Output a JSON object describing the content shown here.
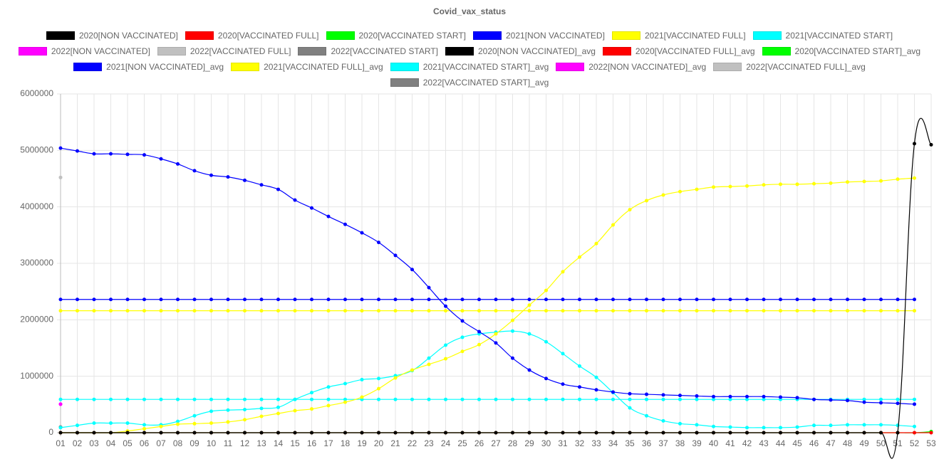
{
  "chart_data": {
    "type": "line",
    "title": "Covid_vax_status",
    "categories": [
      "01",
      "02",
      "03",
      "04",
      "05",
      "06",
      "07",
      "08",
      "09",
      "10",
      "11",
      "12",
      "13",
      "14",
      "15",
      "16",
      "17",
      "18",
      "19",
      "20",
      "21",
      "22",
      "23",
      "24",
      "25",
      "26",
      "27",
      "28",
      "29",
      "30",
      "31",
      "32",
      "33",
      "34",
      "35",
      "36",
      "37",
      "38",
      "39",
      "40",
      "41",
      "42",
      "43",
      "44",
      "45",
      "46",
      "47",
      "48",
      "49",
      "50",
      "51",
      "52",
      "53"
    ],
    "ylim": [
      0,
      6000000
    ],
    "yticks": [
      0,
      1000000,
      2000000,
      3000000,
      4000000,
      5000000,
      6000000
    ],
    "grid": true,
    "legend": "top",
    "series": [
      {
        "name": "2020[NON VACCINATED]",
        "color": "#000000",
        "values": [
          0,
          0,
          0,
          0,
          0,
          0,
          0,
          0,
          0,
          0,
          0,
          0,
          0,
          0,
          0,
          0,
          0,
          0,
          0,
          0,
          0,
          0,
          0,
          0,
          0,
          0,
          0,
          0,
          0,
          0,
          0,
          0,
          0,
          0,
          0,
          0,
          0,
          0,
          0,
          0,
          0,
          0,
          0,
          0,
          0,
          0,
          0,
          0,
          0,
          0,
          0,
          5120000,
          5100000
        ]
      },
      {
        "name": "2020[VACCINATED FULL]",
        "color": "#ff0000",
        "values": [
          0,
          0,
          0,
          0,
          0,
          0,
          0,
          0,
          0,
          0,
          0,
          0,
          0,
          0,
          0,
          0,
          0,
          0,
          0,
          0,
          0,
          0,
          0,
          0,
          0,
          0,
          0,
          0,
          0,
          0,
          0,
          0,
          0,
          0,
          0,
          0,
          0,
          0,
          0,
          0,
          0,
          0,
          0,
          0,
          0,
          0,
          0,
          0,
          0,
          0,
          0,
          0,
          0
        ]
      },
      {
        "name": "2020[VACCINATED START]",
        "color": "#00ff00",
        "values": [
          0,
          0,
          0,
          0,
          0,
          0,
          0,
          0,
          0,
          0,
          0,
          0,
          0,
          0,
          0,
          0,
          0,
          0,
          0,
          0,
          0,
          0,
          0,
          0,
          0,
          0,
          0,
          0,
          0,
          0,
          0,
          0,
          0,
          0,
          0,
          0,
          0,
          0,
          0,
          0,
          0,
          0,
          0,
          0,
          0,
          0,
          0,
          0,
          0,
          0,
          0,
          0,
          20000
        ]
      },
      {
        "name": "2021[NON VACCINATED]",
        "color": "#0000ff",
        "values": [
          5040000,
          4990000,
          4940000,
          4940000,
          4930000,
          4920000,
          4850000,
          4760000,
          4640000,
          4560000,
          4530000,
          4470000,
          4390000,
          4310000,
          4120000,
          3980000,
          3830000,
          3690000,
          3540000,
          3370000,
          3140000,
          2890000,
          2570000,
          2240000,
          1980000,
          1790000,
          1590000,
          1320000,
          1110000,
          960000,
          860000,
          810000,
          760000,
          720000,
          690000,
          680000,
          670000,
          660000,
          650000,
          640000,
          640000,
          640000,
          640000,
          630000,
          620000,
          590000,
          580000,
          570000,
          540000,
          530000,
          520000,
          505000,
          null
        ]
      },
      {
        "name": "2021[VACCINATED FULL]",
        "color": "#ffff00",
        "values": [
          0,
          0,
          0,
          0,
          30000,
          70000,
          110000,
          150000,
          160000,
          170000,
          190000,
          230000,
          290000,
          340000,
          390000,
          420000,
          480000,
          540000,
          630000,
          780000,
          970000,
          1110000,
          1210000,
          1310000,
          1440000,
          1560000,
          1750000,
          1990000,
          2260000,
          2520000,
          2850000,
          3110000,
          3350000,
          3680000,
          3950000,
          4110000,
          4210000,
          4270000,
          4310000,
          4350000,
          4360000,
          4370000,
          4390000,
          4400000,
          4400000,
          4410000,
          4420000,
          4440000,
          4450000,
          4460000,
          4490000,
          4510000,
          null
        ]
      },
      {
        "name": "2021[VACCINATED START]",
        "color": "#00ffff",
        "values": [
          90000,
          130000,
          170000,
          170000,
          170000,
          140000,
          140000,
          200000,
          300000,
          380000,
          400000,
          410000,
          430000,
          450000,
          590000,
          710000,
          810000,
          870000,
          940000,
          960000,
          1010000,
          1100000,
          1320000,
          1550000,
          1690000,
          1750000,
          1780000,
          1800000,
          1750000,
          1610000,
          1400000,
          1180000,
          980000,
          710000,
          440000,
          300000,
          210000,
          160000,
          140000,
          110000,
          100000,
          90000,
          90000,
          90000,
          100000,
          130000,
          130000,
          140000,
          140000,
          140000,
          130000,
          110000,
          null
        ]
      },
      {
        "name": "2022[NON VACCINATED]",
        "color": "#ff00ff",
        "values": [
          505000,
          null,
          null,
          null,
          null,
          null,
          null,
          null,
          null,
          null,
          null,
          null,
          null,
          null,
          null,
          null,
          null,
          null,
          null,
          null,
          null,
          null,
          null,
          null,
          null,
          null,
          null,
          null,
          null,
          null,
          null,
          null,
          null,
          null,
          null,
          null,
          null,
          null,
          null,
          null,
          null,
          null,
          null,
          null,
          null,
          null,
          null,
          null,
          null,
          null,
          null,
          null,
          null
        ]
      },
      {
        "name": "2022[VACCINATED FULL]",
        "color": "#c0c0c0",
        "values": [
          4520000,
          null,
          null,
          null,
          null,
          null,
          null,
          null,
          null,
          null,
          null,
          null,
          null,
          null,
          null,
          null,
          null,
          null,
          null,
          null,
          null,
          null,
          null,
          null,
          null,
          null,
          null,
          null,
          null,
          null,
          null,
          null,
          null,
          null,
          null,
          null,
          null,
          null,
          null,
          null,
          null,
          null,
          null,
          null,
          null,
          null,
          null,
          null,
          null,
          null,
          null,
          null,
          null
        ]
      },
      {
        "name": "2022[VACCINATED START]",
        "color": "#808080",
        "values": [
          100000,
          null,
          null,
          null,
          null,
          null,
          null,
          null,
          null,
          null,
          null,
          null,
          null,
          null,
          null,
          null,
          null,
          null,
          null,
          null,
          null,
          null,
          null,
          null,
          null,
          null,
          null,
          null,
          null,
          null,
          null,
          null,
          null,
          null,
          null,
          null,
          null,
          null,
          null,
          null,
          null,
          null,
          null,
          null,
          null,
          null,
          null,
          null,
          null,
          null,
          null,
          null,
          null
        ]
      },
      {
        "name": "2020[NON VACCINATED]_avg",
        "color": "#000000",
        "values": [
          null,
          null,
          null,
          null,
          null,
          null,
          null,
          null,
          null,
          null,
          null,
          null,
          null,
          null,
          null,
          null,
          null,
          null,
          null,
          null,
          null,
          null,
          null,
          null,
          null,
          null,
          null,
          null,
          null,
          null,
          null,
          null,
          null,
          null,
          null,
          null,
          null,
          null,
          null,
          null,
          null,
          null,
          null,
          null,
          null,
          null,
          null,
          null,
          null,
          null,
          null,
          null,
          null
        ]
      },
      {
        "name": "2020[VACCINATED FULL]_avg",
        "color": "#ff0000",
        "values": [
          null,
          null,
          null,
          null,
          null,
          null,
          null,
          null,
          null,
          null,
          null,
          null,
          null,
          null,
          null,
          null,
          null,
          null,
          null,
          null,
          null,
          null,
          null,
          null,
          null,
          null,
          null,
          null,
          null,
          null,
          null,
          null,
          null,
          null,
          null,
          null,
          null,
          null,
          null,
          null,
          null,
          null,
          null,
          null,
          null,
          null,
          null,
          null,
          null,
          null,
          null,
          null,
          null
        ]
      },
      {
        "name": "2020[VACCINATED START]_avg",
        "color": "#00ff00",
        "values": [
          null,
          null,
          null,
          null,
          null,
          null,
          null,
          null,
          null,
          null,
          null,
          null,
          null,
          null,
          null,
          null,
          null,
          null,
          null,
          null,
          null,
          null,
          null,
          null,
          null,
          null,
          null,
          null,
          null,
          null,
          null,
          null,
          null,
          null,
          null,
          null,
          null,
          null,
          null,
          null,
          null,
          null,
          null,
          null,
          null,
          null,
          null,
          null,
          null,
          null,
          null,
          null,
          null
        ]
      },
      {
        "name": "2021[NON VACCINATED]_avg",
        "color": "#0000ff",
        "values": [
          2360000,
          2360000,
          2360000,
          2360000,
          2360000,
          2360000,
          2360000,
          2360000,
          2360000,
          2360000,
          2360000,
          2360000,
          2360000,
          2360000,
          2360000,
          2360000,
          2360000,
          2360000,
          2360000,
          2360000,
          2360000,
          2360000,
          2360000,
          2360000,
          2360000,
          2360000,
          2360000,
          2360000,
          2360000,
          2360000,
          2360000,
          2360000,
          2360000,
          2360000,
          2360000,
          2360000,
          2360000,
          2360000,
          2360000,
          2360000,
          2360000,
          2360000,
          2360000,
          2360000,
          2360000,
          2360000,
          2360000,
          2360000,
          2360000,
          2360000,
          2360000,
          2360000,
          null
        ]
      },
      {
        "name": "2021[VACCINATED FULL]_avg",
        "color": "#ffff00",
        "values": [
          2160000,
          2160000,
          2160000,
          2160000,
          2160000,
          2160000,
          2160000,
          2160000,
          2160000,
          2160000,
          2160000,
          2160000,
          2160000,
          2160000,
          2160000,
          2160000,
          2160000,
          2160000,
          2160000,
          2160000,
          2160000,
          2160000,
          2160000,
          2160000,
          2160000,
          2160000,
          2160000,
          2160000,
          2160000,
          2160000,
          2160000,
          2160000,
          2160000,
          2160000,
          2160000,
          2160000,
          2160000,
          2160000,
          2160000,
          2160000,
          2160000,
          2160000,
          2160000,
          2160000,
          2160000,
          2160000,
          2160000,
          2160000,
          2160000,
          2160000,
          2160000,
          2160000,
          null
        ]
      },
      {
        "name": "2021[VACCINATED START]_avg",
        "color": "#00ffff",
        "values": [
          590000,
          590000,
          590000,
          590000,
          590000,
          590000,
          590000,
          590000,
          590000,
          590000,
          590000,
          590000,
          590000,
          590000,
          590000,
          590000,
          590000,
          590000,
          590000,
          590000,
          590000,
          590000,
          590000,
          590000,
          590000,
          590000,
          590000,
          590000,
          590000,
          590000,
          590000,
          590000,
          590000,
          590000,
          590000,
          590000,
          590000,
          590000,
          590000,
          590000,
          590000,
          590000,
          590000,
          590000,
          590000,
          590000,
          590000,
          590000,
          590000,
          590000,
          590000,
          590000,
          null
        ]
      },
      {
        "name": "2022[NON VACCINATED]_avg",
        "color": "#ff00ff",
        "values": [
          505000,
          null,
          null,
          null,
          null,
          null,
          null,
          null,
          null,
          null,
          null,
          null,
          null,
          null,
          null,
          null,
          null,
          null,
          null,
          null,
          null,
          null,
          null,
          null,
          null,
          null,
          null,
          null,
          null,
          null,
          null,
          null,
          null,
          null,
          null,
          null,
          null,
          null,
          null,
          null,
          null,
          null,
          null,
          null,
          null,
          null,
          null,
          null,
          null,
          null,
          null,
          null,
          null
        ]
      },
      {
        "name": "2022[VACCINATED FULL]_avg",
        "color": "#c0c0c0",
        "values": [
          4520000,
          null,
          null,
          null,
          null,
          null,
          null,
          null,
          null,
          null,
          null,
          null,
          null,
          null,
          null,
          null,
          null,
          null,
          null,
          null,
          null,
          null,
          null,
          null,
          null,
          null,
          null,
          null,
          null,
          null,
          null,
          null,
          null,
          null,
          null,
          null,
          null,
          null,
          null,
          null,
          null,
          null,
          null,
          null,
          null,
          null,
          null,
          null,
          null,
          null,
          null,
          null,
          null
        ]
      },
      {
        "name": "2022[VACCINATED START]_avg",
        "color": "#808080",
        "values": [
          100000,
          null,
          null,
          null,
          null,
          null,
          null,
          null,
          null,
          null,
          null,
          null,
          null,
          null,
          null,
          null,
          null,
          null,
          null,
          null,
          null,
          null,
          null,
          null,
          null,
          null,
          null,
          null,
          null,
          null,
          null,
          null,
          null,
          null,
          null,
          null,
          null,
          null,
          null,
          null,
          null,
          null,
          null,
          null,
          null,
          null,
          null,
          null,
          null,
          null,
          null,
          null,
          null
        ]
      }
    ]
  }
}
